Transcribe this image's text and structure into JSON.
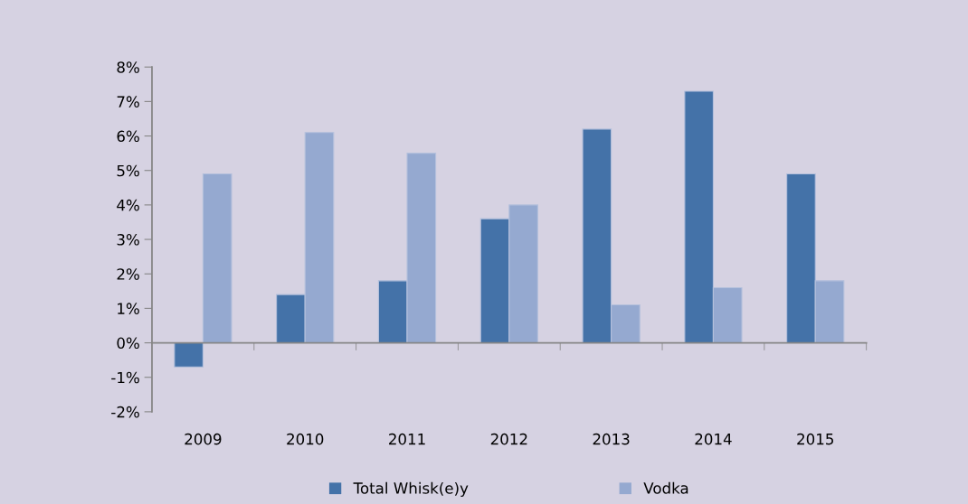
{
  "chart_data": {
    "type": "bar",
    "categories": [
      "2009",
      "2010",
      "2011",
      "2012",
      "2013",
      "2014",
      "2015"
    ],
    "series": [
      {
        "name": "Total Whisk(e)y",
        "color": "#4472a8",
        "values": [
          -0.7,
          1.4,
          1.8,
          3.6,
          6.2,
          7.3,
          4.9
        ]
      },
      {
        "name": "Vodka",
        "color": "#95a9d0",
        "values": [
          4.9,
          6.1,
          5.5,
          4.0,
          1.1,
          1.6,
          1.8
        ]
      }
    ],
    "ylim": [
      -2,
      8
    ],
    "yticks": [
      {
        "value": -2,
        "label": "-2%"
      },
      {
        "value": -1,
        "label": "-1%"
      },
      {
        "value": 0,
        "label": "0%"
      },
      {
        "value": 1,
        "label": "1%"
      },
      {
        "value": 2,
        "label": "2%"
      },
      {
        "value": 3,
        "label": "3%"
      },
      {
        "value": 4,
        "label": "4%"
      },
      {
        "value": 5,
        "label": "5%"
      },
      {
        "value": 6,
        "label": "6%"
      },
      {
        "value": 7,
        "label": "7%"
      },
      {
        "value": 8,
        "label": "8%"
      }
    ],
    "legend": "bottom"
  }
}
